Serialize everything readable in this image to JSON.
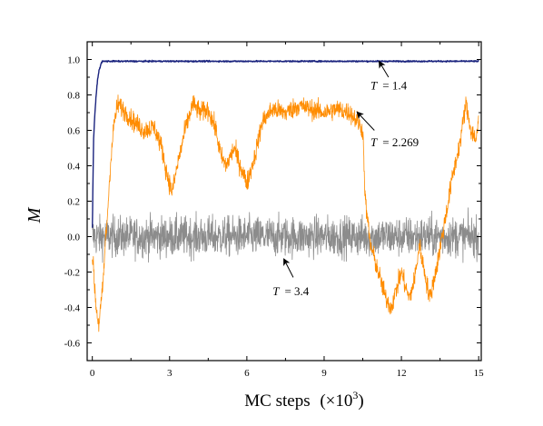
{
  "chart_data": {
    "type": "line",
    "title": "",
    "xlabel": "MC steps",
    "xlabel_unit": "(×10",
    "xlabel_exp": "3",
    "xlabel_close": ")",
    "ylabel": "M",
    "xlim": [
      -0.2,
      15.1
    ],
    "ylim": [
      -0.7,
      1.1
    ],
    "xticks": [
      0,
      3,
      6,
      9,
      12,
      15
    ],
    "xtick_labels": [
      "0",
      "3",
      "6",
      "9",
      "12",
      "15"
    ],
    "yticks": [
      -0.6,
      -0.4,
      -0.2,
      0.0,
      0.2,
      0.4,
      0.6,
      0.8,
      1.0
    ],
    "ytick_labels": [
      "-0.6",
      "-0.4",
      "-0.2",
      "0.0",
      "0.2",
      "0.4",
      "0.6",
      "0.8",
      "1.0"
    ],
    "grid": false,
    "legend": "none",
    "series": [
      {
        "name": "T = 1.4",
        "color": "#1a237e",
        "x": [
          0,
          0.05,
          0.1,
          0.15,
          0.2,
          0.25,
          0.3,
          0.35,
          0.4,
          1,
          2,
          3,
          4,
          5,
          6,
          7,
          8,
          9,
          10,
          11,
          12,
          13,
          14,
          15
        ],
        "y": [
          0.05,
          0.55,
          0.7,
          0.8,
          0.88,
          0.93,
          0.96,
          0.98,
          0.99,
          0.99,
          0.99,
          0.99,
          0.99,
          0.99,
          0.99,
          0.99,
          0.99,
          0.99,
          0.99,
          0.99,
          0.99,
          0.99,
          0.99,
          0.99
        ],
        "noise": 0.004
      },
      {
        "name": "T = 2.269",
        "color": "#ff8c00",
        "x": [
          0,
          0.15,
          0.25,
          0.4,
          0.5,
          0.6,
          0.7,
          0.85,
          1.0,
          1.3,
          1.6,
          2.0,
          2.4,
          2.7,
          2.9,
          3.1,
          3.3,
          3.6,
          3.9,
          4.2,
          4.5,
          4.8,
          5.0,
          5.2,
          5.5,
          5.8,
          6.0,
          6.3,
          6.6,
          7.0,
          7.5,
          8.0,
          8.5,
          9.0,
          9.5,
          10.0,
          10.3,
          10.5,
          10.6,
          10.8,
          11.0,
          11.2,
          11.4,
          11.6,
          11.8,
          12.0,
          12.3,
          12.5,
          12.7,
          12.9,
          13.1,
          13.4,
          13.7,
          14.0,
          14.3,
          14.5,
          14.7,
          14.9,
          15.0
        ],
        "y": [
          -0.1,
          -0.4,
          -0.5,
          -0.3,
          -0.05,
          0.15,
          0.4,
          0.65,
          0.75,
          0.7,
          0.65,
          0.6,
          0.62,
          0.5,
          0.35,
          0.25,
          0.4,
          0.6,
          0.75,
          0.7,
          0.72,
          0.6,
          0.45,
          0.4,
          0.5,
          0.38,
          0.3,
          0.45,
          0.65,
          0.72,
          0.7,
          0.74,
          0.72,
          0.7,
          0.72,
          0.7,
          0.65,
          0.6,
          0.2,
          -0.05,
          -0.15,
          -0.25,
          -0.35,
          -0.4,
          -0.3,
          -0.2,
          -0.35,
          -0.25,
          -0.05,
          -0.2,
          -0.35,
          -0.15,
          0.1,
          0.35,
          0.55,
          0.75,
          0.6,
          0.55,
          0.65
        ],
        "noise": 0.06
      },
      {
        "name": "T = 3.4",
        "color": "#8c8c8c",
        "x": [
          0,
          15
        ],
        "y": [
          0.0,
          0.0
        ],
        "noise": 0.12
      }
    ],
    "annotations": [
      {
        "label": "T",
        "value": "= 1.4",
        "text_at": [
          10.8,
          0.83
        ],
        "arrow_from": [
          11.5,
          0.9
        ],
        "arrow_to": [
          11.15,
          0.985
        ]
      },
      {
        "label": "T",
        "value": "= 2.269",
        "text_at": [
          10.8,
          0.51
        ],
        "arrow_from": [
          10.95,
          0.6
        ],
        "arrow_to": [
          10.3,
          0.7
        ]
      },
      {
        "label": "T",
        "value": "= 3.4",
        "text_at": [
          7.0,
          -0.33
        ],
        "arrow_from": [
          7.8,
          -0.23
        ],
        "arrow_to": [
          7.45,
          -0.13
        ]
      }
    ]
  }
}
